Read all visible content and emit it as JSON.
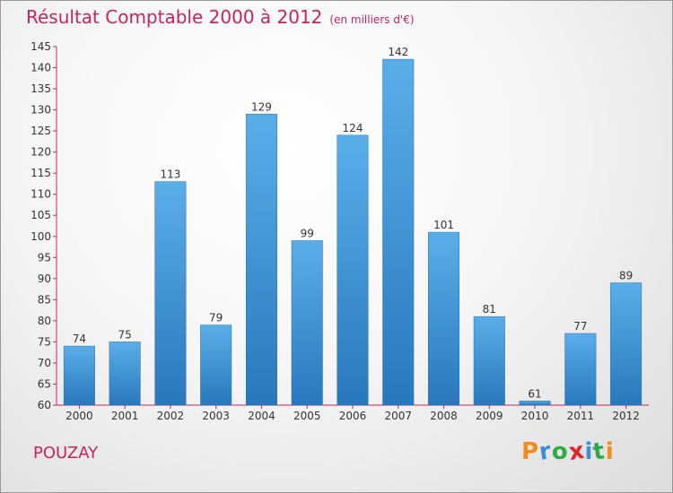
{
  "title": "Résultat Comptable 2000 à 2012",
  "subtitle": "(en milliers d'€)",
  "place": "POUZAY",
  "logo": "Proxiti",
  "logo_colors": [
    "#f28c1a",
    "#3a8fd6",
    "#2eaa48",
    "#e0262a",
    "#3a8fd6",
    "#2eaa48",
    "#f28c1a"
  ],
  "chart_data": {
    "type": "bar",
    "title": "Résultat Comptable 2000 à 2012",
    "xlabel": "",
    "ylabel": "",
    "categories": [
      "2000",
      "2001",
      "2002",
      "2003",
      "2004",
      "2005",
      "2006",
      "2007",
      "2008",
      "2009",
      "2010",
      "2011",
      "2012"
    ],
    "values": [
      74,
      75,
      113,
      79,
      129,
      99,
      124,
      142,
      101,
      81,
      61,
      77,
      89
    ],
    "ylim": [
      60,
      145
    ],
    "yticks": [
      60,
      65,
      70,
      75,
      80,
      85,
      90,
      95,
      100,
      105,
      110,
      115,
      120,
      125,
      130,
      135,
      140,
      145
    ],
    "grid": false,
    "bar_color": "#3a90d6",
    "axis_color": "#c8245a"
  }
}
